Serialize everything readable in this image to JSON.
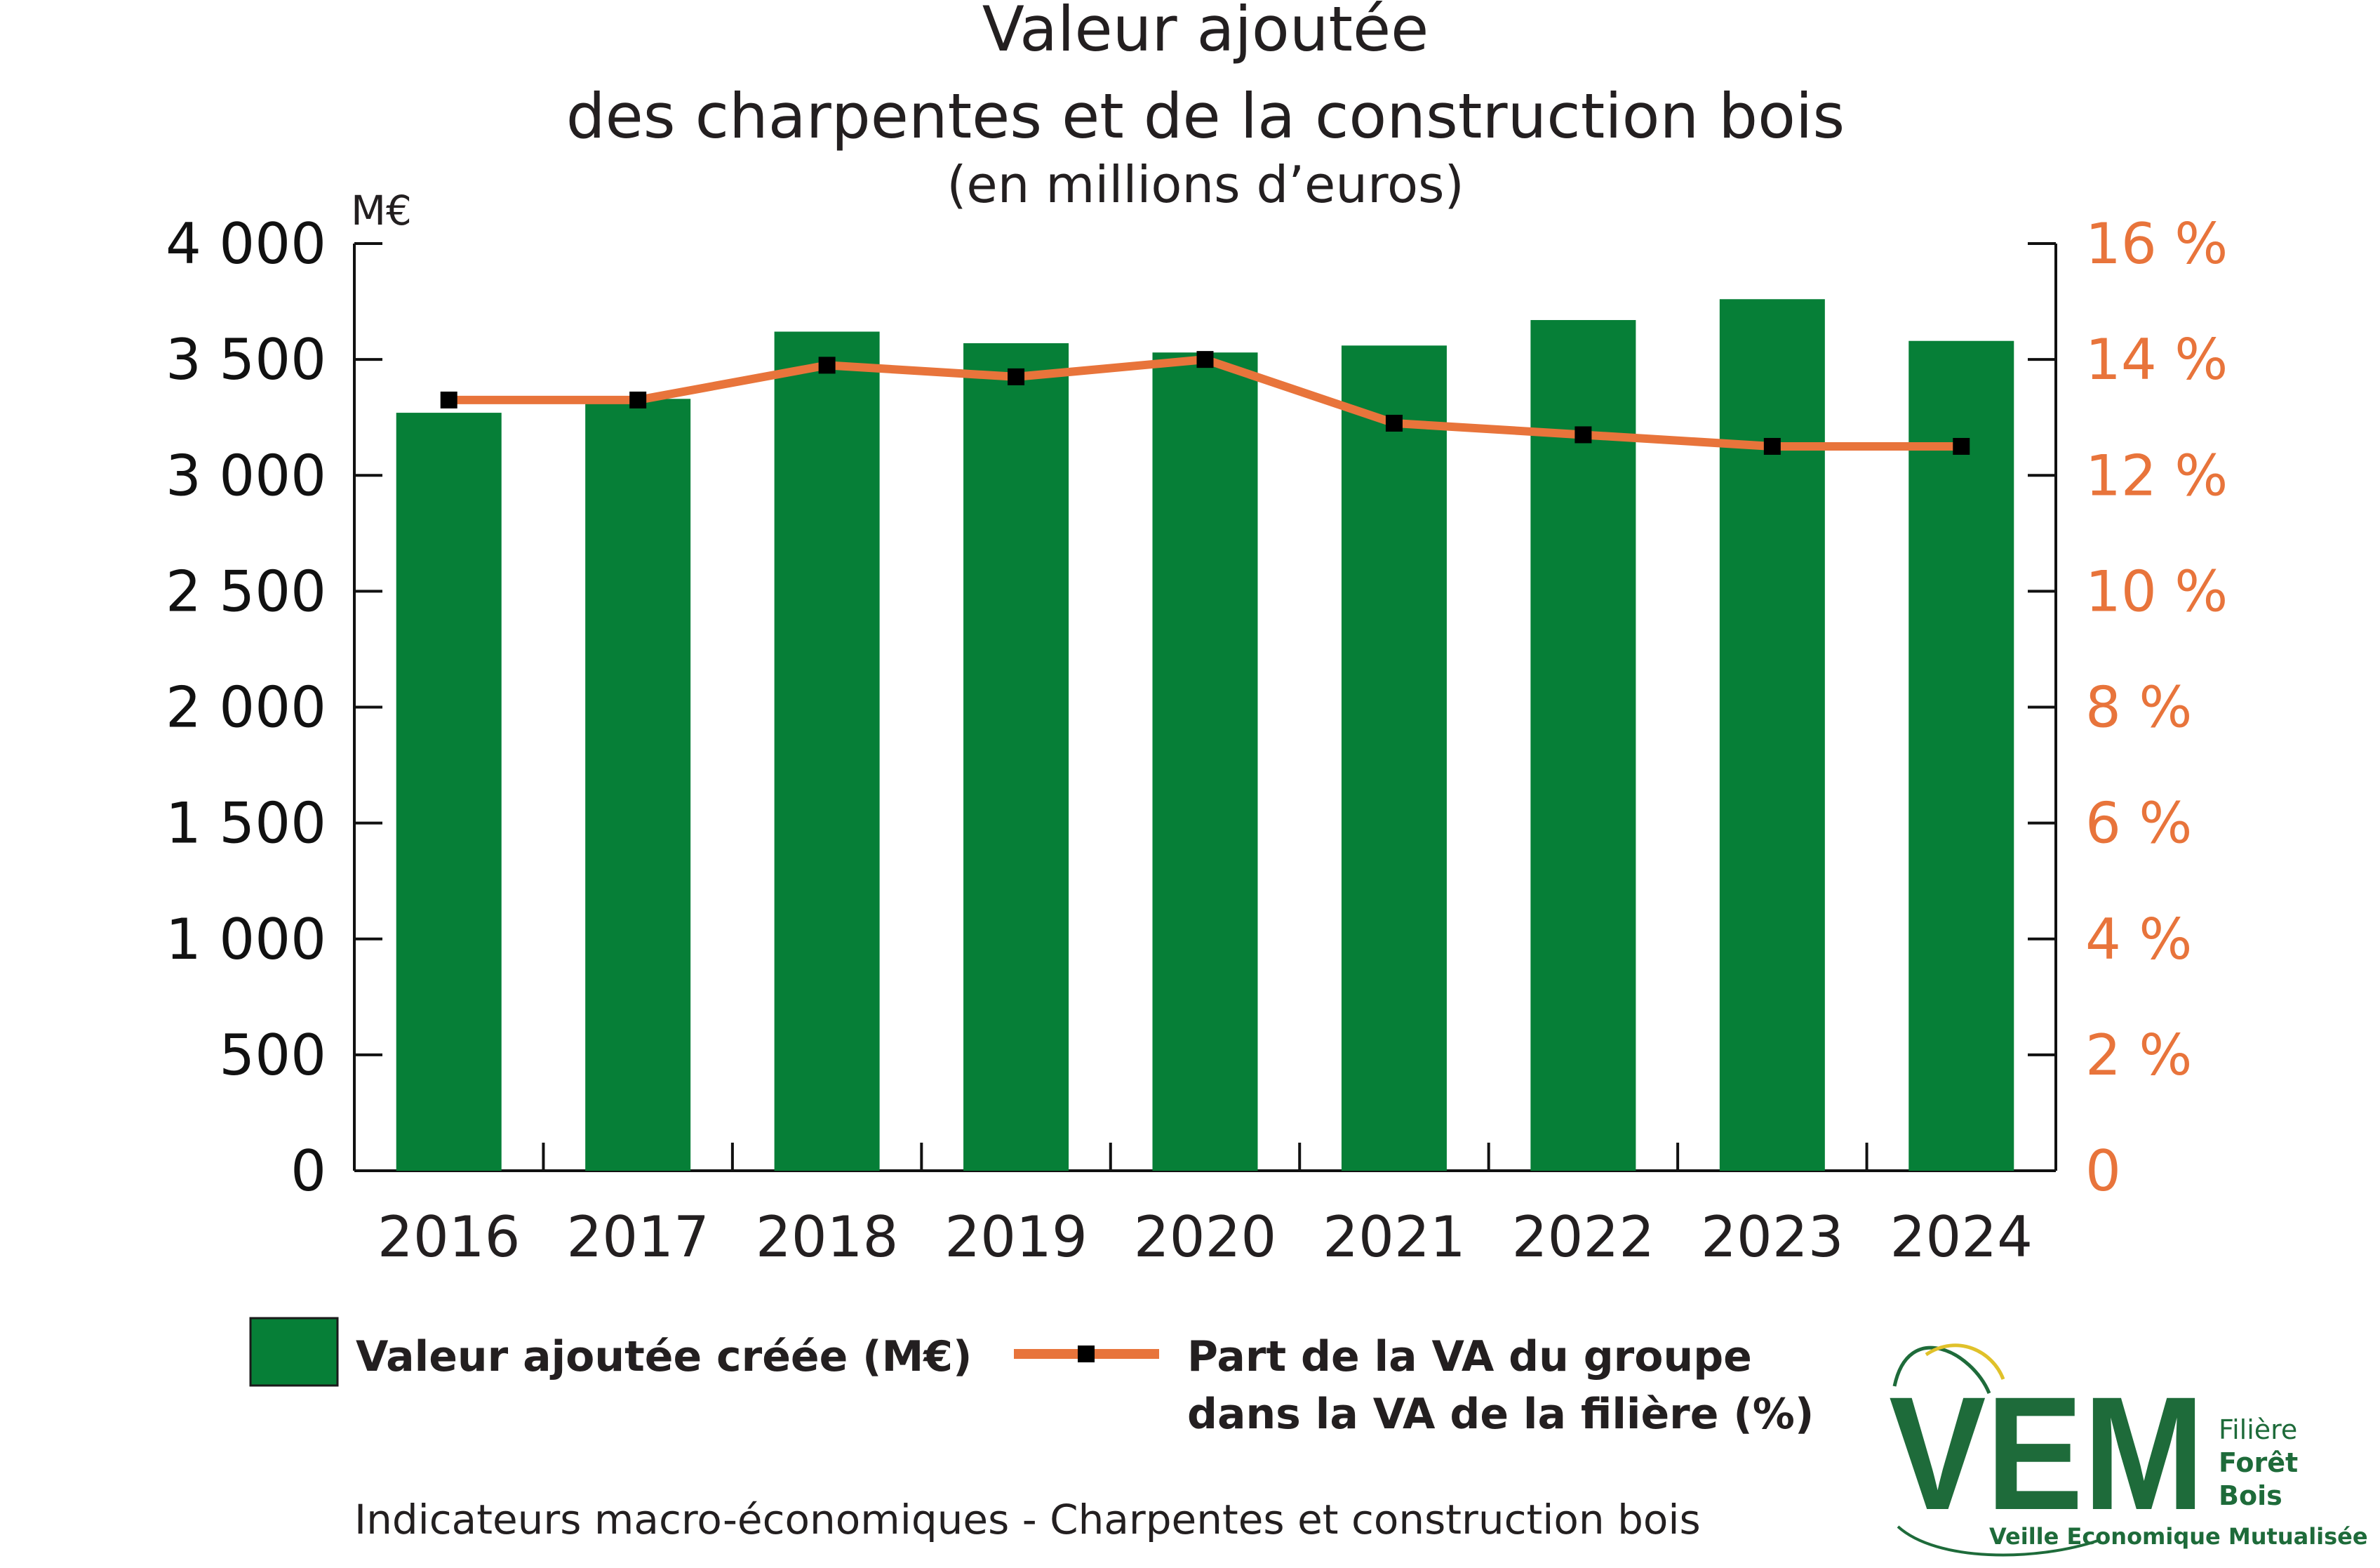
{
  "chart_data": {
    "type": "bar",
    "title": "Valeur ajoutée",
    "title_line2": "des charpentes et de la construction bois",
    "subtitle": "(en millions d’euros)",
    "y_unit_label": "M€",
    "categories": [
      "2016",
      "2017",
      "2018",
      "2019",
      "2020",
      "2021",
      "2022",
      "2023",
      "2024"
    ],
    "series": [
      {
        "name": "Valeur ajoutée créée (M€)",
        "type": "bar",
        "axis": "left",
        "values": [
          3270,
          3330,
          3620,
          3570,
          3530,
          3560,
          3670,
          3760,
          3580
        ]
      },
      {
        "name": "Part de la VA du groupe dans la VA de la filière (%)",
        "name_line1": "Part de la VA du groupe",
        "name_line2": "dans la VA de la filière (%)",
        "type": "line",
        "axis": "right",
        "values": [
          13.3,
          13.3,
          13.9,
          13.7,
          14.0,
          12.9,
          12.7,
          12.5,
          12.5
        ]
      }
    ],
    "y_left": {
      "ylim": [
        0,
        4000
      ],
      "ticks": [
        0,
        500,
        1000,
        1500,
        2000,
        2500,
        3000,
        3500,
        4000
      ],
      "tick_labels": [
        "0",
        "500",
        "1 000",
        "1 500",
        "2 000",
        "2 500",
        "3 000",
        "3 500",
        "4 000"
      ]
    },
    "y_right": {
      "ylim": [
        0,
        16
      ],
      "ticks": [
        0,
        2,
        4,
        6,
        8,
        10,
        12,
        14,
        16
      ],
      "tick_labels": [
        "0",
        "2 %",
        "4 %",
        "6 %",
        "8 %",
        "10 %",
        "12 %",
        "14 %",
        "16 %"
      ]
    },
    "grid": false,
    "legend_position": "bottom"
  },
  "colors": {
    "bar": "#067f37",
    "line": "#e8743b",
    "marker": "#000000",
    "right_axis_text": "#e8743b",
    "logo_green": "#1e6b3a",
    "logo_yellow": "#e0c12a"
  },
  "footer": "Indicateurs macro-économiques - Charpentes et construction bois",
  "logo": {
    "letters": "VEM",
    "line1": "Filière",
    "line2": "Forêt",
    "line3": "Bois",
    "tagline": "Veille Economique Mutualisée"
  }
}
